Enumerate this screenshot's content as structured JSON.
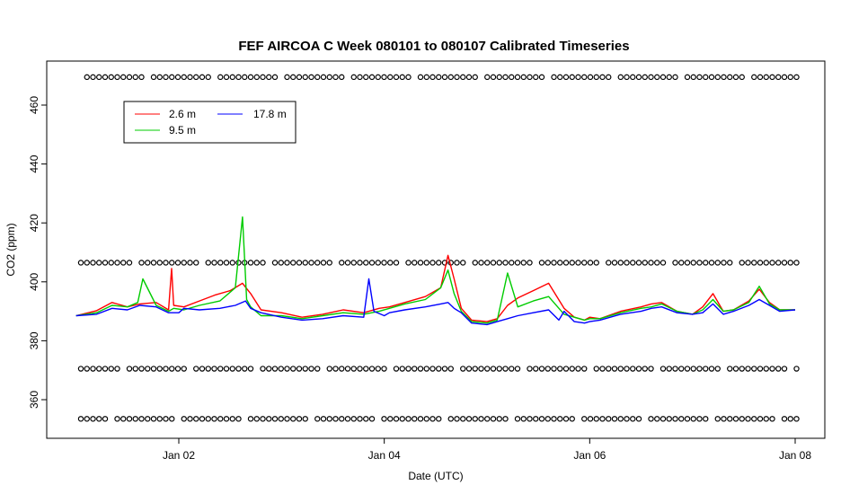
{
  "chart_data": {
    "type": "line",
    "title": "FEF AIRCOA C  Week 080101 to 080107  Calibrated Timeseries",
    "xlabel": "Date (UTC)",
    "ylabel": "CO2 (ppm)",
    "x_unit": "days since 2008-01-01",
    "xlim": [
      1.05,
      7.05
    ],
    "ylim": [
      348.5,
      471.5
    ],
    "x_ticks": [
      {
        "x": 2,
        "label": "Jan 02"
      },
      {
        "x": 4,
        "label": "Jan 04"
      },
      {
        "x": 6,
        "label": "Jan 06"
      },
      {
        "x": 8,
        "label": "Jan 08"
      }
    ],
    "y_ticks": [
      360,
      380,
      400,
      420,
      440,
      460
    ],
    "y_tick_labels": [
      "360",
      "380",
      "400",
      "420",
      "440",
      "460"
    ],
    "grid": false,
    "legend": {
      "position": "top-left",
      "entries": [
        {
          "label": "2.6 m",
          "color": "#ff0000"
        },
        {
          "label": "9.5 m",
          "color": "#00cc00"
        },
        {
          "label": "17.8 m",
          "color": "#0000ff"
        }
      ]
    },
    "series": [
      {
        "name": "2.6 m",
        "color": "#ff0000",
        "x": [
          1.0,
          1.2,
          1.35,
          1.5,
          1.62,
          1.78,
          1.9,
          1.93,
          1.95,
          2.05,
          2.2,
          2.35,
          2.5,
          2.62,
          2.7,
          2.8,
          3.0,
          3.2,
          3.4,
          3.6,
          3.8,
          3.95,
          4.05,
          4.2,
          4.4,
          4.55,
          4.62,
          4.68,
          4.75,
          4.85,
          5.0,
          5.1,
          5.2,
          5.3,
          5.45,
          5.6,
          5.75,
          5.85,
          5.95,
          6.0,
          6.1,
          6.3,
          6.5,
          6.6,
          6.7,
          6.85,
          7.0,
          7.1,
          7.2,
          7.3,
          7.4,
          7.55,
          7.65,
          7.75,
          7.85,
          8.0
        ],
        "y": [
          388.5,
          390.2,
          393.0,
          391.5,
          392.5,
          393.0,
          390.5,
          404.5,
          392.0,
          391.5,
          393.5,
          395.5,
          397.0,
          399.5,
          396.0,
          390.5,
          389.5,
          388.0,
          389.0,
          390.5,
          389.5,
          391.0,
          391.5,
          393.0,
          395.0,
          398.0,
          409.0,
          401.0,
          391.0,
          387.0,
          386.5,
          387.5,
          392.0,
          394.5,
          397.0,
          399.5,
          391.0,
          388.0,
          387.0,
          388.0,
          387.5,
          390.0,
          391.5,
          392.5,
          393.0,
          390.0,
          389.0,
          391.5,
          396.0,
          390.0,
          390.5,
          393.5,
          397.5,
          393.0,
          390.5,
          390.5
        ]
      },
      {
        "name": "9.5 m",
        "color": "#00cc00",
        "x": [
          1.0,
          1.2,
          1.35,
          1.5,
          1.6,
          1.65,
          1.78,
          1.9,
          1.95,
          2.05,
          2.2,
          2.4,
          2.55,
          2.62,
          2.66,
          2.7,
          2.8,
          3.0,
          3.2,
          3.4,
          3.6,
          3.8,
          3.95,
          4.05,
          4.2,
          4.4,
          4.55,
          4.62,
          4.68,
          4.75,
          4.85,
          5.0,
          5.1,
          5.2,
          5.3,
          5.45,
          5.6,
          5.75,
          5.85,
          5.95,
          6.0,
          6.1,
          6.3,
          6.5,
          6.6,
          6.7,
          6.85,
          7.0,
          7.1,
          7.2,
          7.3,
          7.4,
          7.55,
          7.65,
          7.75,
          7.85,
          8.0
        ],
        "y": [
          388.5,
          389.5,
          392.0,
          391.5,
          393.0,
          401.0,
          392.0,
          390.0,
          391.0,
          390.5,
          392.0,
          393.5,
          398.0,
          422.0,
          394.0,
          391.5,
          388.5,
          388.5,
          387.5,
          388.5,
          389.5,
          389.0,
          390.0,
          391.0,
          392.5,
          394.0,
          398.0,
          404.0,
          396.0,
          390.0,
          386.5,
          386.0,
          387.0,
          403.0,
          391.5,
          393.5,
          395.0,
          389.0,
          388.0,
          387.0,
          387.5,
          387.5,
          389.5,
          391.0,
          391.5,
          392.5,
          390.0,
          389.0,
          390.5,
          394.0,
          390.0,
          390.5,
          393.0,
          398.5,
          392.5,
          390.5,
          390.5
        ]
      },
      {
        "name": "17.8 m",
        "color": "#0000ff",
        "x": [
          1.0,
          1.2,
          1.35,
          1.5,
          1.62,
          1.78,
          1.9,
          2.0,
          2.05,
          2.2,
          2.4,
          2.55,
          2.65,
          2.7,
          2.8,
          3.0,
          3.2,
          3.4,
          3.6,
          3.8,
          3.85,
          3.9,
          4.0,
          4.05,
          4.2,
          4.4,
          4.55,
          4.62,
          4.68,
          4.75,
          4.85,
          5.0,
          5.1,
          5.2,
          5.3,
          5.45,
          5.6,
          5.7,
          5.75,
          5.85,
          5.95,
          6.0,
          6.1,
          6.3,
          6.5,
          6.6,
          6.7,
          6.85,
          7.0,
          7.1,
          7.2,
          7.3,
          7.4,
          7.55,
          7.65,
          7.75,
          7.85,
          8.0
        ],
        "y": [
          388.5,
          389.0,
          391.0,
          390.5,
          392.0,
          391.5,
          389.5,
          389.5,
          391.0,
          390.5,
          391.0,
          392.0,
          393.5,
          391.0,
          389.5,
          388.0,
          387.0,
          387.5,
          388.5,
          388.0,
          401.0,
          390.0,
          388.5,
          389.5,
          390.5,
          391.5,
          392.5,
          393.0,
          391.0,
          389.5,
          386.0,
          385.5,
          386.5,
          387.5,
          388.5,
          389.5,
          390.5,
          387.0,
          390.0,
          386.5,
          386.0,
          386.5,
          387.0,
          389.0,
          390.0,
          391.0,
          391.5,
          389.5,
          389.0,
          389.5,
          392.5,
          389.0,
          390.0,
          392.0,
          394.0,
          392.0,
          390.0,
          390.5
        ]
      }
    ],
    "marker_rows": [
      {
        "y": 469.5
      },
      {
        "y": 406.5
      },
      {
        "y": 370.5
      },
      {
        "y": 353.5
      }
    ]
  }
}
